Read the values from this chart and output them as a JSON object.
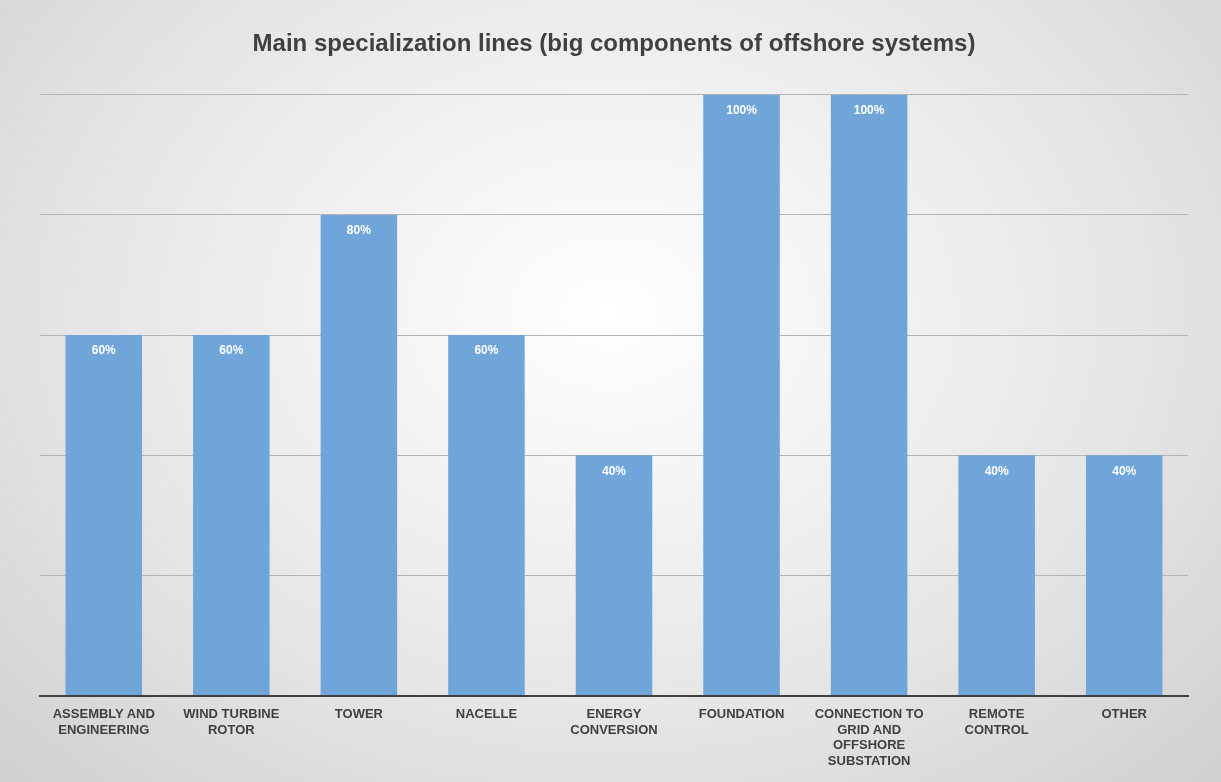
{
  "chart_data": {
    "type": "bar",
    "title": "Main specialization lines (big components of offshore systems)",
    "categories": [
      "ASSEMBLY AND ENGINEERING",
      "WIND TURBINE ROTOR",
      "TOWER",
      "NACELLE",
      "ENERGY CONVERSION",
      "FOUNDATION",
      "CONNECTION TO GRID AND OFFSHORE SUBSTATION",
      "REMOTE CONTROL",
      "OTHER"
    ],
    "values": [
      60,
      60,
      80,
      60,
      40,
      100,
      100,
      40,
      40
    ],
    "value_labels": [
      "60%",
      "60%",
      "80%",
      "60%",
      "40%",
      "100%",
      "100%",
      "40%",
      "40%"
    ],
    "color": "#6fa5d8",
    "ylim": [
      0,
      100
    ],
    "yticks": [
      {
        "value": 0,
        "label": null
      },
      {
        "value": 20,
        "label": null
      },
      {
        "value": 40,
        "label": null
      },
      {
        "value": 60,
        "label": null
      },
      {
        "value": 80,
        "label": null
      },
      {
        "value": 100,
        "label": null
      }
    ],
    "grid": "y",
    "tick_labels": "x",
    "legend": false
  }
}
